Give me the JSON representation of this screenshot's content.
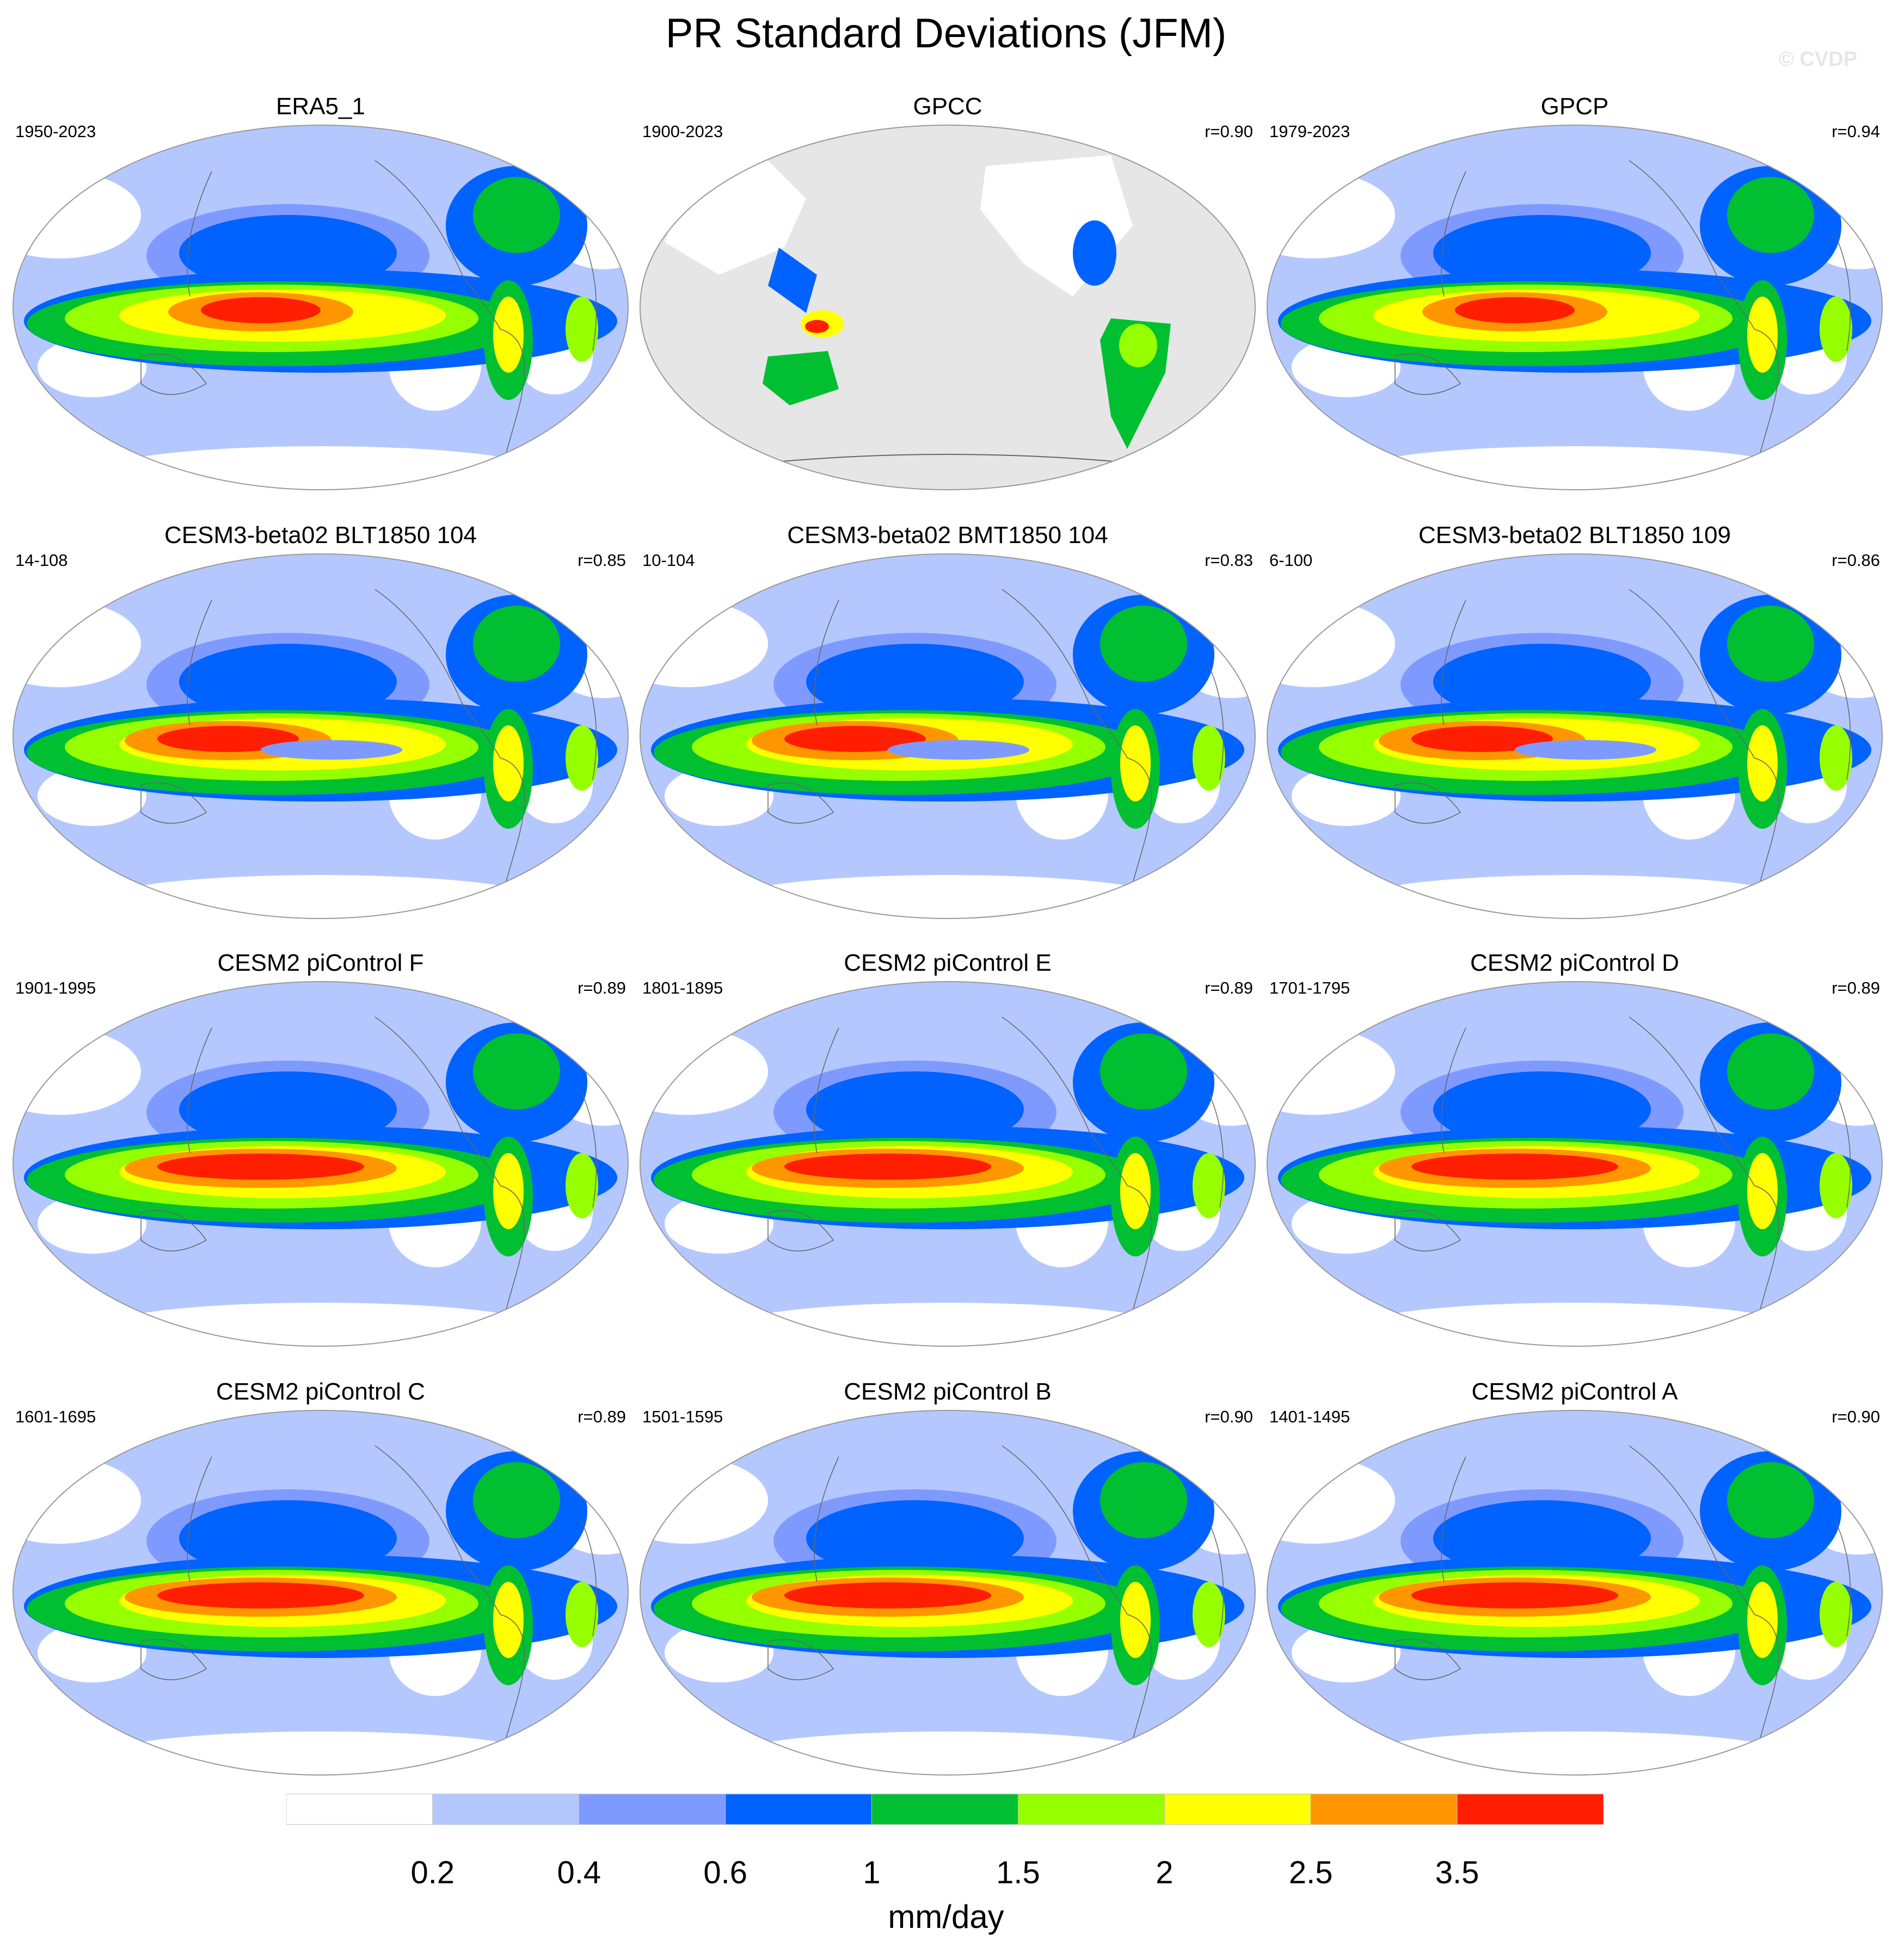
{
  "title": "PR Standard Deviations (JFM)",
  "watermark": "© CVDP",
  "colorbar": {
    "unit": "mm/day",
    "tick_labels": [
      "0.2",
      "0.4",
      "0.6",
      "1",
      "1.5",
      "2",
      "2.5",
      "3.5"
    ],
    "colors": [
      "#ffffff",
      "#b4c8ff",
      "#7f9aff",
      "#0062ff",
      "#00c032",
      "#96ff00",
      "#ffff00",
      "#ff9600",
      "#ff1e00"
    ]
  },
  "colors": {
    "land_mask": "#e6e6e6",
    "coastline": "#666666",
    "frame": "#999999"
  },
  "panels": [
    {
      "title": "ERA5_1",
      "years": "1950-2023",
      "corr": "",
      "masked": false,
      "variant": 0
    },
    {
      "title": "GPCC",
      "years": "1900-2023",
      "corr": "r=0.90",
      "masked": true,
      "variant": 1
    },
    {
      "title": "GPCP",
      "years": "1979-2023",
      "corr": "r=0.94",
      "masked": false,
      "variant": 2
    },
    {
      "title": "CESM3-beta02 BLT1850 104",
      "years": "14-108",
      "corr": "r=0.85",
      "masked": false,
      "variant": 3
    },
    {
      "title": "CESM3-beta02 BMT1850 104",
      "years": "10-104",
      "corr": "r=0.83",
      "masked": false,
      "variant": 3
    },
    {
      "title": "CESM3-beta02 BLT1850 109",
      "years": "6-100",
      "corr": "r=0.86",
      "masked": false,
      "variant": 3
    },
    {
      "title": "CESM2 piControl F",
      "years": "1901-1995",
      "corr": "r=0.89",
      "masked": false,
      "variant": 4
    },
    {
      "title": "CESM2 piControl E",
      "years": "1801-1895",
      "corr": "r=0.89",
      "masked": false,
      "variant": 4
    },
    {
      "title": "CESM2 piControl D",
      "years": "1701-1795",
      "corr": "r=0.89",
      "masked": false,
      "variant": 4
    },
    {
      "title": "CESM2 piControl C",
      "years": "1601-1695",
      "corr": "r=0.89",
      "masked": false,
      "variant": 4
    },
    {
      "title": "CESM2 piControl B",
      "years": "1501-1595",
      "corr": "r=0.90",
      "masked": false,
      "variant": 4
    },
    {
      "title": "CESM2 piControl A",
      "years": "1401-1495",
      "corr": "r=0.90",
      "masked": false,
      "variant": 4
    }
  ]
}
